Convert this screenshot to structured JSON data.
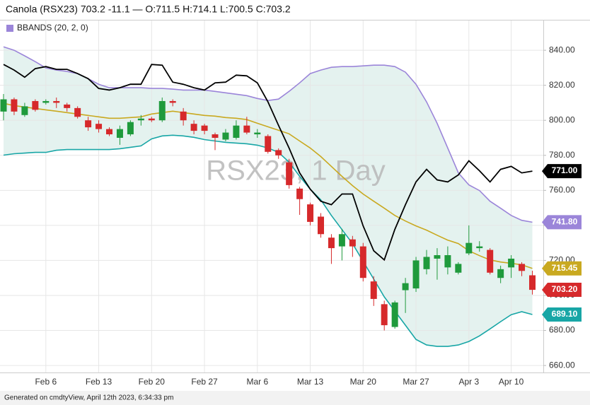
{
  "chart_data": {
    "type": "candlestick",
    "title": "Canola (RSX23) 703.2 -11.1 — O:711.5 H:714.1 L:700.5 C:703.2",
    "legend_label": "BBANDS (20, 2, 0)",
    "legend_color": "#9b85d9",
    "watermark": "RSX23, 1 Day",
    "categories": [
      null,
      null,
      null,
      null,
      "Feb 6",
      null,
      null,
      null,
      null,
      "Feb 13",
      null,
      null,
      null,
      null,
      "Feb 20",
      null,
      null,
      null,
      null,
      "Feb 27",
      null,
      null,
      null,
      null,
      "Mar 6",
      null,
      null,
      null,
      null,
      "Mar 13",
      null,
      null,
      null,
      null,
      "Mar 20",
      null,
      null,
      null,
      null,
      "Mar 27",
      null,
      null,
      null,
      null,
      "Apr 3",
      null,
      null,
      null,
      "Apr 10",
      null,
      null
    ],
    "open": [
      805,
      812,
      803,
      811,
      810,
      811,
      809,
      807,
      800,
      798,
      795,
      790,
      792,
      800,
      801,
      800,
      811,
      805,
      798,
      797,
      792,
      789,
      790,
      797,
      792,
      791,
      783,
      776,
      761,
      752,
      745,
      733,
      728,
      732,
      728,
      708,
      695,
      682,
      703,
      704,
      715,
      721,
      716,
      713,
      724,
      727,
      726,
      710,
      716,
      718,
      711.5
    ],
    "high": [
      815,
      813,
      810,
      812,
      812,
      813,
      810,
      808,
      802,
      800,
      796,
      797,
      800,
      803,
      802,
      813,
      812,
      807,
      800,
      798,
      793,
      795,
      800,
      802,
      795,
      792,
      784,
      778,
      762,
      753,
      747,
      735,
      738,
      734,
      730,
      711,
      697,
      697,
      710,
      722,
      726,
      727,
      728,
      719,
      740,
      731,
      727,
      717,
      723,
      719,
      714.1
    ],
    "low": [
      800,
      803,
      802,
      805,
      809,
      807,
      805,
      801,
      794,
      793,
      791,
      786,
      791,
      797,
      799,
      799,
      808,
      797,
      792,
      792,
      783,
      788,
      789,
      792,
      790,
      781,
      778,
      761,
      746,
      740,
      733,
      718,
      720,
      722,
      708,
      694,
      680,
      681,
      690,
      702,
      712,
      709,
      712,
      712,
      723,
      725,
      712,
      707,
      710,
      711,
      700.5
    ],
    "close": [
      812,
      805,
      808,
      806,
      811,
      810,
      807,
      802,
      796,
      795,
      792,
      795,
      799,
      801,
      800,
      811,
      810,
      800,
      794,
      794,
      790,
      793,
      797,
      793,
      793,
      782,
      780,
      763,
      755,
      742,
      735,
      727,
      735,
      728,
      710,
      698,
      683,
      696,
      707,
      720,
      722,
      723,
      723,
      718,
      730,
      728,
      713,
      715,
      721,
      714,
      703.2
    ],
    "close_label": "703.20",
    "up_color": "#1f9a3c",
    "down_color": "#d6292b",
    "bands": {
      "fill": "#e4f2ef",
      "upper": {
        "color": "#9b85d9",
        "last_label": "741.80",
        "values": [
          842.0,
          840.0,
          836.8,
          833.5,
          829.9,
          828.7,
          827.9,
          826.7,
          823.8,
          820.6,
          818.6,
          818.6,
          818.6,
          818.6,
          818.2,
          818.2,
          817.8,
          817.3,
          817.3,
          817.3,
          816.5,
          815.7,
          814.9,
          814.1,
          812.5,
          811.3,
          812.1,
          816.5,
          821.4,
          826.7,
          828.7,
          830.3,
          830.7,
          830.7,
          831.1,
          831.5,
          831.5,
          830.7,
          827.5,
          820.6,
          810.5,
          798.3,
          784.2,
          770.0,
          763.1,
          759.9,
          753.8,
          749.8,
          745.7,
          742.9,
          741.8
        ]
      },
      "middle": {
        "color": "#c9a920",
        "last_label": "715.45",
        "values": [
          809.7,
          808.4,
          807.6,
          806.8,
          806.0,
          805.2,
          804.4,
          803.6,
          802.8,
          802.0,
          801.2,
          801.2,
          801.6,
          802.0,
          803.6,
          804.4,
          805.2,
          804.4,
          803.6,
          802.8,
          802.4,
          801.6,
          801.2,
          800.4,
          798.3,
          796.3,
          794.3,
          792.3,
          788.2,
          784.2,
          779.3,
          773.7,
          768.0,
          762.7,
          757.9,
          753.8,
          749.8,
          745.7,
          742.5,
          739.7,
          737.3,
          734.4,
          731.6,
          729.6,
          725.5,
          722.7,
          720.3,
          719.1,
          718.3,
          717.5,
          715.45
        ]
      },
      "lower": {
        "color": "#18a6a6",
        "last_label": "689.10",
        "values": [
          780.1,
          780.9,
          781.3,
          781.7,
          781.7,
          782.9,
          783.3,
          783.3,
          783.3,
          783.3,
          783.3,
          783.8,
          784.6,
          785.4,
          789.4,
          791.1,
          791.5,
          791.1,
          790.3,
          789.0,
          788.2,
          787.4,
          787.0,
          786.6,
          785.8,
          784.2,
          781.7,
          776.1,
          768.0,
          760.7,
          754.6,
          745.7,
          737.6,
          729.6,
          719.5,
          709.3,
          699.2,
          691.1,
          683.0,
          674.9,
          671.7,
          670.9,
          670.9,
          671.7,
          673.7,
          676.9,
          680.9,
          685.0,
          689.0,
          690.7,
          689.1
        ]
      }
    },
    "compare_line": {
      "color": "#000000",
      "last_label": "771.00",
      "values": [
        831.9,
        828.7,
        824.6,
        829.5,
        830.7,
        829.1,
        829.1,
        826.7,
        823.8,
        818.2,
        817.3,
        818.6,
        820.6,
        820.6,
        831.9,
        831.5,
        821.8,
        820.6,
        818.6,
        817.3,
        821.4,
        821.8,
        825.8,
        825.4,
        821.4,
        810.5,
        797.1,
        784.2,
        770.0,
        760.7,
        753.8,
        751.8,
        757.9,
        757.9,
        739.7,
        725.5,
        720.3,
        737.7,
        751.8,
        764.8,
        772.0,
        766.0,
        764.8,
        768.8,
        776.9,
        771.2,
        764.8,
        772.0,
        773.7,
        770.0,
        771.0
      ]
    },
    "ylim": [
      656,
      857
    ],
    "yticks": [
      {
        "value": 660,
        "label": "660.00"
      },
      {
        "value": 680,
        "label": "680.00"
      },
      {
        "value": 700,
        "label": "700.00"
      },
      {
        "value": 720,
        "label": "720.00"
      },
      {
        "value": 740,
        "label": "740.00"
      },
      {
        "value": 760,
        "label": "760.00"
      },
      {
        "value": 780,
        "label": "780.00"
      },
      {
        "value": 800,
        "label": "800.00"
      },
      {
        "value": 820,
        "label": "820.00"
      },
      {
        "value": 840,
        "label": "840.00"
      }
    ],
    "grid": true
  },
  "footer": "Generated on cmdtyView, April 12th 2023, 6:34:33 pm"
}
